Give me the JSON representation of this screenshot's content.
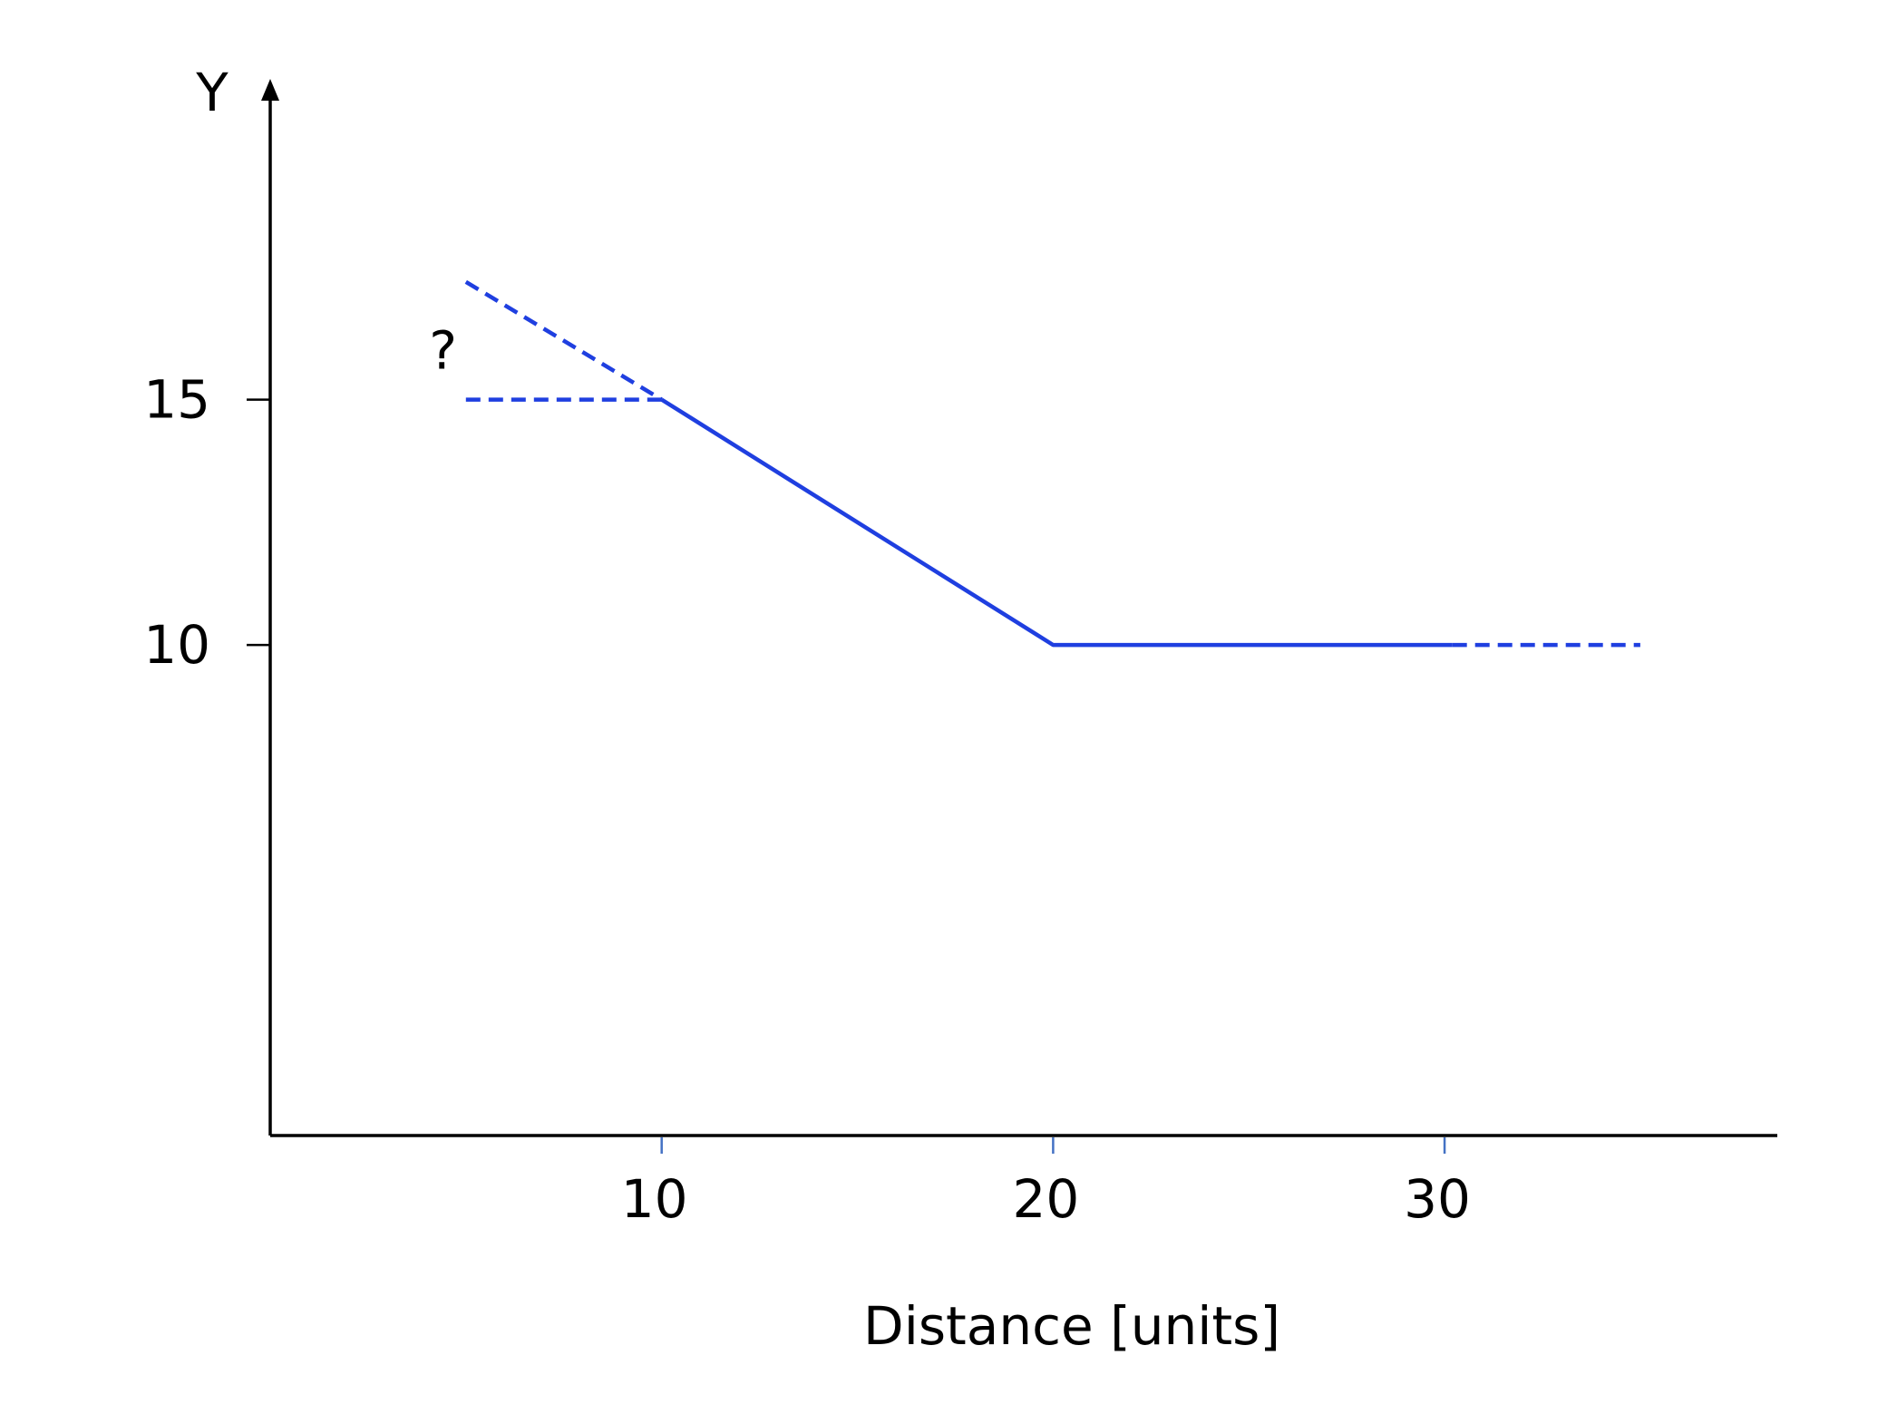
{
  "chart_data": {
    "type": "line",
    "title": "",
    "xlabel": "Distance [units]",
    "ylabel": "Y",
    "xlim": [
      0,
      38.5
    ],
    "ylim": [
      0,
      21.5
    ],
    "x_ticks": [
      10,
      20,
      30
    ],
    "x_tick_labels": [
      "10",
      "20",
      "30"
    ],
    "y_ticks": [
      10,
      15
    ],
    "y_tick_labels": [
      "10",
      "15"
    ],
    "grid": false,
    "legend": "none",
    "line_color": "#1f3fe0",
    "axis_color": "#000000",
    "x_tick_color": "#4472c4",
    "series": [
      {
        "style": "solid",
        "x": [
          10,
          20,
          30.2
        ],
        "y": [
          15,
          10,
          10
        ]
      },
      {
        "style": "dashed",
        "x": [
          5,
          10
        ],
        "y": [
          17.4,
          15
        ]
      },
      {
        "style": "dashed",
        "x": [
          5,
          10
        ],
        "y": [
          15,
          15
        ]
      },
      {
        "style": "dashed",
        "x": [
          30.2,
          35
        ],
        "y": [
          10,
          10
        ]
      }
    ],
    "annotations": [
      {
        "text": "?",
        "x": 4.3,
        "y": 16
      }
    ]
  }
}
